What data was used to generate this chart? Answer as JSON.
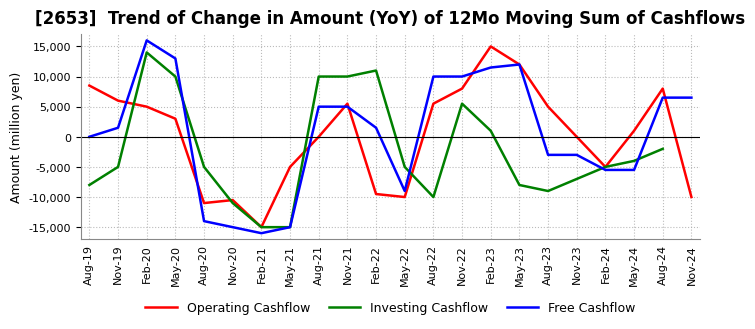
{
  "title": "[2653]  Trend of Change in Amount (YoY) of 12Mo Moving Sum of Cashflows",
  "ylabel": "Amount (million yen)",
  "ylim": [
    -17000,
    17000
  ],
  "yticks": [
    -15000,
    -10000,
    -5000,
    0,
    5000,
    10000,
    15000
  ],
  "x_labels": [
    "Aug-19",
    "Nov-19",
    "Feb-20",
    "May-20",
    "Aug-20",
    "Nov-20",
    "Feb-21",
    "May-21",
    "Aug-21",
    "Nov-21",
    "Feb-22",
    "May-22",
    "Aug-22",
    "Nov-22",
    "Feb-23",
    "May-23",
    "Aug-23",
    "Nov-23",
    "Feb-24",
    "May-24",
    "Aug-24",
    "Nov-24"
  ],
  "operating": [
    8500,
    6000,
    5000,
    3000,
    -11000,
    -10500,
    -15000,
    -5000,
    0,
    5500,
    -9500,
    -10000,
    5500,
    8000,
    15000,
    12000,
    5000,
    0,
    -5000,
    1000,
    8000,
    -10000
  ],
  "investing": [
    -8000,
    -5000,
    14000,
    10000,
    -5000,
    -11000,
    -15000,
    -15000,
    10000,
    10000,
    11000,
    -5000,
    -10000,
    5500,
    1000,
    -8000,
    -9000,
    -7000,
    -5000,
    -4000,
    -2000,
    null
  ],
  "free": [
    0,
    1500,
    16000,
    13000,
    -14000,
    -15000,
    -16000,
    -15000,
    5000,
    5000,
    1500,
    -9000,
    10000,
    10000,
    11500,
    12000,
    -3000,
    -3000,
    -5500,
    -5500,
    6500,
    6500
  ],
  "operating_color": "#ff0000",
  "investing_color": "#008000",
  "free_color": "#0000ff",
  "legend_labels": [
    "Operating Cashflow",
    "Investing Cashflow",
    "Free Cashflow"
  ],
  "title_fontsize": 12,
  "axis_fontsize": 9,
  "tick_fontsize": 8,
  "grid_color": "#aaaaaa",
  "grid_style": ":"
}
